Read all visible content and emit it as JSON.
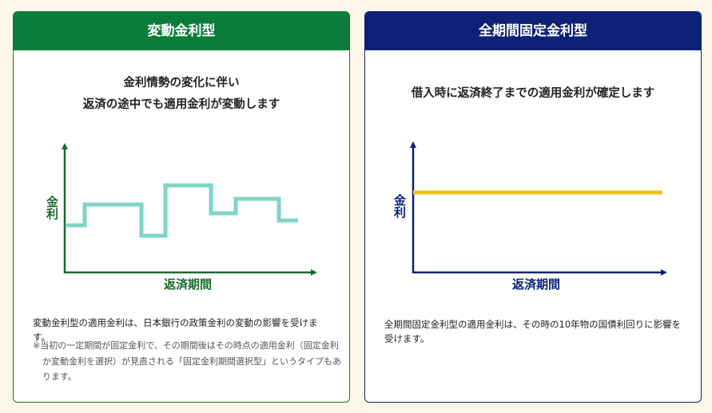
{
  "cards": [
    {
      "title": "変動金利型",
      "lead": [
        "金利情勢の変化に伴い",
        "返済の途中でも適用金利が変動します"
      ],
      "y_axis_label": "金利",
      "x_axis_label": "返済期間",
      "description": "変動金利型の適用金利は、日本銀行の政策金利の変動の影響を受けます。",
      "note": "※当初の一定期間が固定金利で、その期間後はその時点の適用金利（固定金利か変動金利を選択）が見直される「固定金利期間選択型」というタイプもあります。"
    },
    {
      "title": "全期間固定金利型",
      "lead": [
        "借入時に返済終了までの適用金利が確定します"
      ],
      "y_axis_label": "金利",
      "x_axis_label": "返済期間",
      "description": "全期間固定金利型の適用金利は、その時の10年物の国債利回りに影響を受けます。"
    }
  ]
}
